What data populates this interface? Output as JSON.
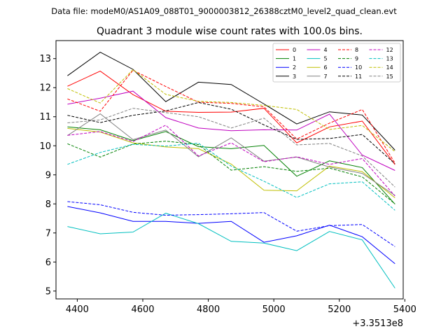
{
  "header": {
    "data_file": "Data file: modeM0/AS1A09_088T01_9000003812_26388cztM0_level2_quad_clean.evt"
  },
  "chart_data": {
    "type": "line",
    "title": "Quadrant 3 module wise count rates with 100.0s bins.",
    "xlabel": "",
    "ylabel": "",
    "x_offset_label": "+3.3513e8",
    "x": [
      4370,
      4470,
      4570,
      4670,
      4770,
      4870,
      4970,
      5070,
      5170,
      5270,
      5370
    ],
    "xlim": [
      4335,
      5395
    ],
    "ylim": [
      4.73,
      13.62
    ],
    "x_ticks": [
      4400,
      4600,
      4800,
      5000,
      5200,
      5400
    ],
    "x_tick_labels": [
      "4400",
      "4600",
      "4800",
      "5000",
      "5200",
      "5400"
    ],
    "y_ticks": [
      5,
      6,
      7,
      8,
      9,
      10,
      11,
      12,
      13
    ],
    "y_tick_labels": [
      "5",
      "6",
      "7",
      "8",
      "9",
      "10",
      "11",
      "12",
      "13"
    ],
    "grid": false,
    "legend_placement": "top-right",
    "legend_columns": 4,
    "series": [
      {
        "name": "0",
        "color": "#ff0000",
        "dash": "solid",
        "values": [
          12.05,
          12.57,
          11.76,
          11.19,
          11.15,
          11.16,
          11.29,
          10.1,
          10.65,
          10.85,
          9.35
        ]
      },
      {
        "name": "1",
        "color": "#008000",
        "dash": "solid",
        "values": [
          10.65,
          10.55,
          10.18,
          10.49,
          9.97,
          9.9,
          10.01,
          8.95,
          9.48,
          9.25,
          7.99
        ]
      },
      {
        "name": "2",
        "color": "#0000ff",
        "dash": "solid",
        "values": [
          7.91,
          7.69,
          7.4,
          7.4,
          7.33,
          7.4,
          6.68,
          6.9,
          7.27,
          6.87,
          5.94
        ]
      },
      {
        "name": "3",
        "color": "#000000",
        "dash": "solid",
        "values": [
          12.41,
          13.22,
          12.63,
          11.52,
          12.19,
          12.11,
          11.44,
          10.75,
          11.17,
          11.06,
          9.85
        ]
      },
      {
        "name": "4",
        "color": "#bf00bf",
        "dash": "solid",
        "values": [
          11.43,
          11.64,
          11.88,
          10.97,
          10.61,
          10.52,
          10.55,
          10.54,
          11.09,
          9.68,
          9.15
        ]
      },
      {
        "name": "5",
        "color": "#00bfbf",
        "dash": "solid",
        "values": [
          7.22,
          6.97,
          7.03,
          7.68,
          7.32,
          6.71,
          6.65,
          6.39,
          7.05,
          6.76,
          5.1
        ]
      },
      {
        "name": "6",
        "color": "#bfbf00",
        "dash": "solid",
        "values": [
          10.6,
          10.47,
          10.1,
          9.96,
          9.9,
          9.37,
          8.47,
          8.45,
          9.3,
          9.11,
          8.21
        ]
      },
      {
        "name": "7",
        "color": "#808080",
        "dash": "solid",
        "values": [
          10.35,
          11.1,
          10.21,
          10.54,
          9.62,
          10.27,
          9.47,
          9.61,
          9.27,
          9.05,
          8.29
        ]
      },
      {
        "name": "8",
        "color": "#ff0000",
        "dash": "dashed",
        "values": [
          11.61,
          11.19,
          12.6,
          12.04,
          11.5,
          11.46,
          11.34,
          10.23,
          10.78,
          11.25,
          9.4
        ]
      },
      {
        "name": "9",
        "color": "#008000",
        "dash": "dashed",
        "values": [
          10.07,
          9.61,
          10.06,
          10.16,
          10.04,
          9.16,
          9.28,
          9.12,
          9.23,
          8.93,
          8.0
        ]
      },
      {
        "name": "10",
        "color": "#0000ff",
        "dash": "dashed",
        "values": [
          8.08,
          7.97,
          7.71,
          7.61,
          7.63,
          7.66,
          7.7,
          7.06,
          7.25,
          7.29,
          6.53
        ]
      },
      {
        "name": "11",
        "color": "#000000",
        "dash": "dashed",
        "values": [
          11.05,
          10.8,
          11.05,
          11.2,
          11.49,
          11.26,
          10.72,
          10.22,
          10.25,
          10.39,
          9.38
        ]
      },
      {
        "name": "12",
        "color": "#bf00bf",
        "dash": "dashed",
        "values": [
          10.36,
          10.49,
          10.14,
          10.71,
          9.65,
          10.1,
          9.45,
          9.62,
          9.36,
          9.56,
          8.27
        ]
      },
      {
        "name": "13",
        "color": "#00bfbf",
        "dash": "dashed",
        "values": [
          9.36,
          9.77,
          10.05,
          9.99,
          10.09,
          9.3,
          8.78,
          8.22,
          8.69,
          8.76,
          7.78
        ]
      },
      {
        "name": "14",
        "color": "#bfbf00",
        "dash": "dashed",
        "values": [
          11.97,
          11.47,
          12.62,
          11.77,
          11.53,
          11.49,
          11.39,
          11.25,
          10.56,
          10.7,
          9.8
        ]
      },
      {
        "name": "15",
        "color": "#808080",
        "dash": "dashed",
        "values": [
          10.79,
          10.89,
          11.29,
          11.14,
          11.0,
          10.61,
          10.95,
          10.03,
          10.08,
          9.65,
          8.58
        ]
      }
    ]
  }
}
